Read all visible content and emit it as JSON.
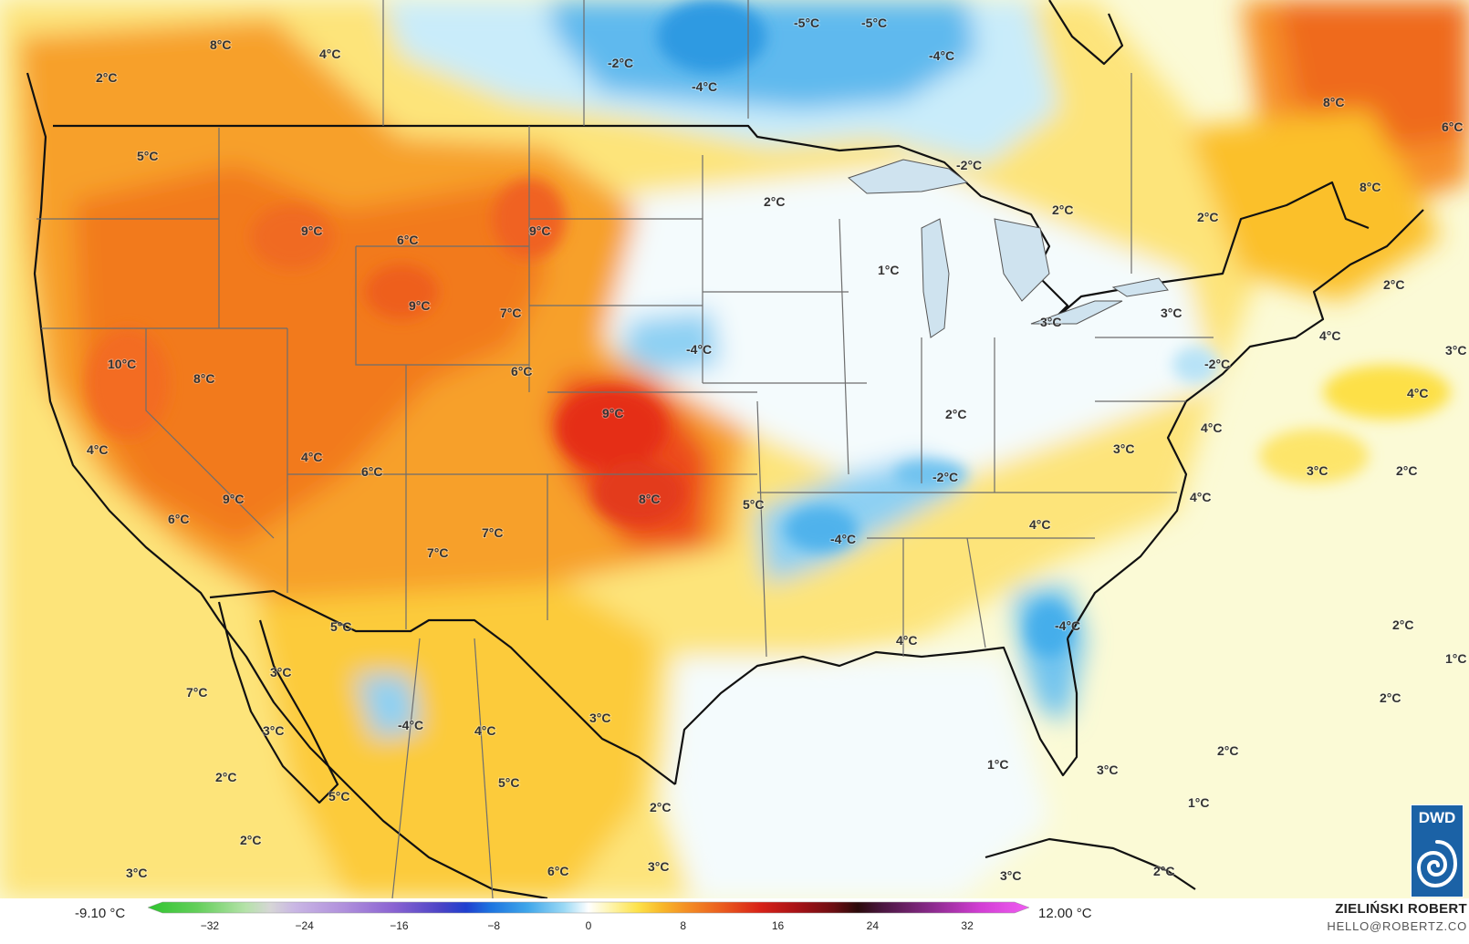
{
  "map": {
    "colors": {
      "ocean_neutral": "#fbfad6",
      "warm_light": "#fef2a8",
      "warm_yellow": "#fde24a",
      "warm_gold": "#fbc62a",
      "warm_orange": "#f7a02c",
      "warm_deep_orange": "#f27a1e",
      "warm_red": "#e8391d",
      "cold_very_light": "#f3fbfe",
      "cold_light": "#d5f0fb",
      "cold_sky": "#a6dbf4",
      "cold_blue": "#66bfee",
      "cold_deep": "#2d9ae2",
      "cold_deepest": "#1584d9",
      "border_line": "#111111",
      "state_line": "#6e6e6e",
      "label_text": "#333333"
    },
    "labels": [
      {
        "id": "bc",
        "text": "8°C"
      },
      {
        "id": "wa-north",
        "text": "2°C"
      },
      {
        "id": "ab",
        "text": "4°C"
      },
      {
        "id": "wa",
        "text": "5°C"
      },
      {
        "id": "id",
        "text": "9°C"
      },
      {
        "id": "mt",
        "text": "6°C"
      },
      {
        "id": "nd",
        "text": "9°C"
      },
      {
        "id": "wy",
        "text": "9°C"
      },
      {
        "id": "sd",
        "text": "7°C"
      },
      {
        "id": "ca-n",
        "text": "10°C"
      },
      {
        "id": "nv",
        "text": "8°C"
      },
      {
        "id": "ne",
        "text": "6°C"
      },
      {
        "id": "ks",
        "text": "9°C"
      },
      {
        "id": "ca-coast",
        "text": "4°C"
      },
      {
        "id": "ut",
        "text": "4°C"
      },
      {
        "id": "co-w",
        "text": "6°C"
      },
      {
        "id": "ca-c",
        "text": "9°C"
      },
      {
        "id": "ca-s",
        "text": "6°C"
      },
      {
        "id": "ok",
        "text": "8°C"
      },
      {
        "id": "ar",
        "text": "5°C"
      },
      {
        "id": "tx-w",
        "text": "7°C"
      },
      {
        "id": "nm",
        "text": "7°C"
      },
      {
        "id": "az",
        "text": "5°C"
      },
      {
        "id": "baja-n",
        "text": "3°C"
      },
      {
        "id": "pac-w",
        "text": "7°C"
      },
      {
        "id": "baja",
        "text": "3°C"
      },
      {
        "id": "pac-sw",
        "text": "2°C"
      },
      {
        "id": "baja-s",
        "text": "5°C"
      },
      {
        "id": "pac-s",
        "text": "2°C"
      },
      {
        "id": "pac-s2",
        "text": "3°C"
      },
      {
        "id": "mx-w",
        "text": "-4°C"
      },
      {
        "id": "mx-c",
        "text": "4°C"
      },
      {
        "id": "mx-e",
        "text": "3°C"
      },
      {
        "id": "mx-c2",
        "text": "5°C"
      },
      {
        "id": "mx-s",
        "text": "2°C"
      },
      {
        "id": "mx-s2",
        "text": "6°C"
      },
      {
        "id": "mx-s3",
        "text": "3°C"
      },
      {
        "id": "mb",
        "text": "-5°C"
      },
      {
        "id": "on-w",
        "text": "-5°C"
      },
      {
        "id": "sk",
        "text": "-2°C"
      },
      {
        "id": "mb2",
        "text": "-4°C"
      },
      {
        "id": "on",
        "text": "-4°C"
      },
      {
        "id": "mn-n",
        "text": "2°C"
      },
      {
        "id": "superior",
        "text": "-2°C"
      },
      {
        "id": "wi",
        "text": "1°C"
      },
      {
        "id": "ia",
        "text": "-4°C"
      },
      {
        "id": "on-s",
        "text": "2°C"
      },
      {
        "id": "qc-s",
        "text": "2°C"
      },
      {
        "id": "mi",
        "text": "3°C"
      },
      {
        "id": "ny",
        "text": "3°C"
      },
      {
        "id": "il",
        "text": "2°C"
      },
      {
        "id": "pa",
        "text": "-2°C"
      },
      {
        "id": "tn",
        "text": "-2°C"
      },
      {
        "id": "ar-e",
        "text": "-4°C"
      },
      {
        "id": "wv",
        "text": "3°C"
      },
      {
        "id": "ga-n",
        "text": "4°C"
      },
      {
        "id": "la",
        "text": "4°C"
      },
      {
        "id": "ga",
        "text": "-4°C"
      },
      {
        "id": "va",
        "text": "4°C"
      },
      {
        "id": "nc",
        "text": "4°C"
      },
      {
        "id": "ns",
        "text": "8°C"
      },
      {
        "id": "nb",
        "text": "8°C"
      },
      {
        "id": "nl",
        "text": "6°C"
      },
      {
        "id": "gulf-me",
        "text": "2°C"
      },
      {
        "id": "atl-ne",
        "text": "3°C"
      },
      {
        "id": "ny-coast",
        "text": "4°C"
      },
      {
        "id": "atl-n",
        "text": "4°C"
      },
      {
        "id": "atl-c",
        "text": "3°C"
      },
      {
        "id": "atl-e",
        "text": "2°C"
      },
      {
        "id": "atl-se",
        "text": "2°C"
      },
      {
        "id": "atl-se2",
        "text": "1°C"
      },
      {
        "id": "atl-s",
        "text": "2°C"
      },
      {
        "id": "atl-s2",
        "text": "2°C"
      },
      {
        "id": "gulf",
        "text": "1°C"
      },
      {
        "id": "fl-s",
        "text": "3°C"
      },
      {
        "id": "bahamas",
        "text": "1°C"
      },
      {
        "id": "cuba-w",
        "text": "3°C"
      },
      {
        "id": "cuba-e",
        "text": "2°C"
      }
    ]
  },
  "legend": {
    "min_label": "-9.10 °C",
    "max_label": "12.00 °C",
    "ticks": [
      "−32",
      "−24",
      "−16",
      "−8",
      "0",
      "8",
      "16",
      "24",
      "32"
    ],
    "stops": [
      {
        "v": -36,
        "c": "#2fc42f"
      },
      {
        "v": -32,
        "c": "#63cf5a"
      },
      {
        "v": -28,
        "c": "#b5e2a9"
      },
      {
        "v": -26,
        "c": "#d6d6d6"
      },
      {
        "v": -24,
        "c": "#c9b6e4"
      },
      {
        "v": -20,
        "c": "#b090dc"
      },
      {
        "v": -16,
        "c": "#8b64d2"
      },
      {
        "v": -12,
        "c": "#4a43c6"
      },
      {
        "v": -10,
        "c": "#1f3fcf"
      },
      {
        "v": -8,
        "c": "#1d74e0"
      },
      {
        "v": -5,
        "c": "#3fa6ea"
      },
      {
        "v": -2,
        "c": "#9bd9f5"
      },
      {
        "v": 0,
        "c": "#ffffff"
      },
      {
        "v": 2,
        "c": "#fef3a4"
      },
      {
        "v": 4,
        "c": "#fde24a"
      },
      {
        "v": 6,
        "c": "#f8b82a"
      },
      {
        "v": 8,
        "c": "#f48f25"
      },
      {
        "v": 11,
        "c": "#ea5a1e"
      },
      {
        "v": 14,
        "c": "#d82218"
      },
      {
        "v": 17,
        "c": "#a81216"
      },
      {
        "v": 20,
        "c": "#6c0e12"
      },
      {
        "v": 22,
        "c": "#2b0a0a"
      },
      {
        "v": 24,
        "c": "#4a1640"
      },
      {
        "v": 28,
        "c": "#8a2a8c"
      },
      {
        "v": 32,
        "c": "#d23ed4"
      },
      {
        "v": 36,
        "c": "#f05cf2"
      }
    ]
  },
  "credits": {
    "author": "ZIELIŃSKI ROBERT",
    "email": "HELLO@ROBERTZ.CO",
    "logo_text": "DWD"
  }
}
